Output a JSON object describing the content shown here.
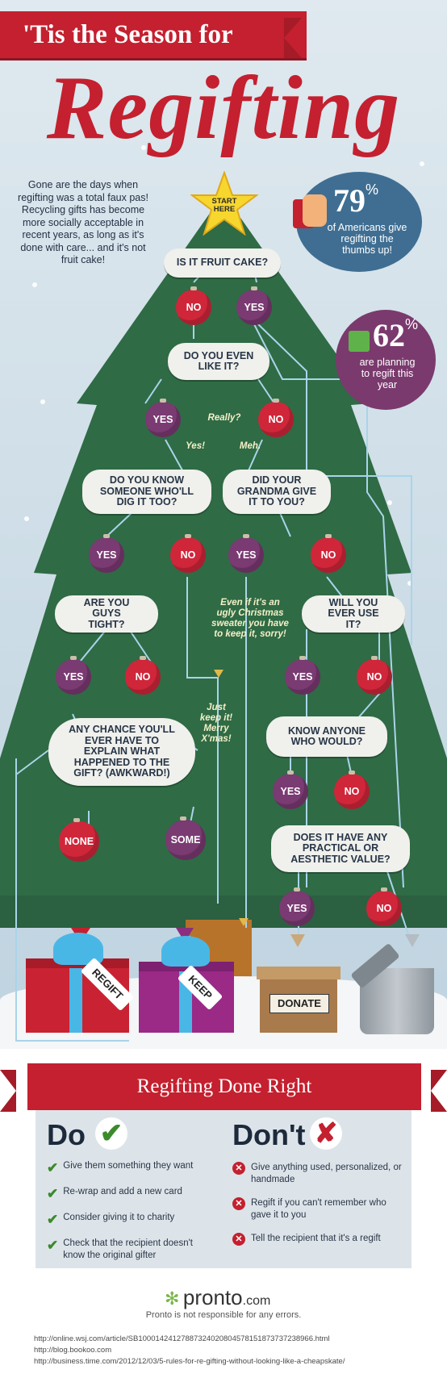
{
  "header": {
    "banner": "'Tis the Season for",
    "title": "Regifting"
  },
  "intro": "Gone are the days when regifting was a total faux pas! Recycling gifts has become more socially acceptable in recent years, as long as it's done with care... and it's not fruit cake!",
  "stats": {
    "stat1_value": "79",
    "stat1_pct": "%",
    "stat1_text": "of Americans give regifting the thumbs up!",
    "stat2_value": "62",
    "stat2_pct": "%",
    "stat2_text": "are planning to regift this year"
  },
  "flow": {
    "start": "START HERE",
    "q_fruitcake": "IS IT FRUIT CAKE?",
    "q_like": "DO YOU EVEN LIKE IT?",
    "q_know": "DO YOU KNOW SOMEONE WHO'LL DIG IT TOO?",
    "q_grandma": "DID YOUR GRANDMA GIVE IT TO YOU?",
    "q_tight": "ARE YOU GUYS TIGHT?",
    "q_use": "WILL YOU EVER USE IT?",
    "q_chance": "ANY CHANCE YOU'LL EVER HAVE TO EXPLAIN WHAT HAPPENED TO THE GIFT? (AWKWARD!)",
    "q_anyone": "KNOW ANYONE WHO WOULD?",
    "q_value": "DOES IT HAVE ANY PRACTICAL OR AESTHETIC VALUE?",
    "yes": "YES",
    "no": "NO",
    "none": "NONE",
    "some": "SOME",
    "really": "Really?",
    "yes_note": "Yes!",
    "meh": "Meh.",
    "grandma_note": "Even if it's an ugly Christmas sweater you have to keep it, sorry!",
    "keep_note": "Just keep it! Merry X'mas!"
  },
  "outcomes": {
    "regift": "REGIFT",
    "keep": "KEEP",
    "donate": "DONATE"
  },
  "tips": {
    "banner": "Regifting Done Right",
    "do_title": "Do",
    "dont_title": "Don't",
    "do_items": [
      "Give them something they want",
      "Re-wrap and add a new card",
      "Consider giving it to charity",
      "Check that the recipient doesn't know the original gifter"
    ],
    "dont_items": [
      "Give anything used, personalized, or handmade",
      "Regift if you can't remember who gave it to you",
      "Tell the recipient that it's a regift"
    ]
  },
  "footer": {
    "brand": "pronto",
    "brand_tld": ".com",
    "disclaimer": "Pronto is not responsible for any errors.",
    "sources": [
      "http://online.wsj.com/article/SB10001424127887324020804578151873737238966.html",
      "http://blog.bookoo.com",
      "http://business.time.com/2012/12/03/5-rules-for-re-gifting-without-looking-like-a-cheapskate/"
    ]
  },
  "colors": {
    "red": "#c4202f",
    "tree": "#2f6b45",
    "purple": "#7a3a72",
    "blue": "#3f6e92"
  }
}
